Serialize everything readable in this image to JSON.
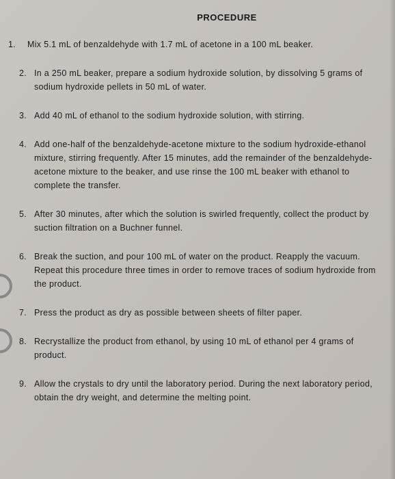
{
  "title": "PROCEDURE",
  "steps": [
    {
      "num": "1.",
      "text": "Mix 5.1 mL of benzaldehyde with 1.7 mL of acetone in a 100 mL beaker."
    },
    {
      "num": "2.",
      "text": "In a 250 mL beaker, prepare a sodium hydroxide solution, by dissolving 5 grams of sodium hydroxide pellets in 50 mL of water."
    },
    {
      "num": "3.",
      "text": "Add 40 mL of ethanol to the sodium hydroxide solution, with stirring."
    },
    {
      "num": "4.",
      "text": "Add one-half of the benzaldehyde-acetone mixture to the sodium hydroxide-ethanol mixture, stirring frequently. After 15 minutes, add the remainder of the benzaldehyde-acetone mixture to the beaker, and use rinse the 100 mL beaker with ethanol to complete the transfer."
    },
    {
      "num": "5.",
      "text": "After 30 minutes, after which the solution is swirled frequently, collect the product by suction filtration on a Buchner funnel."
    },
    {
      "num": "6.",
      "text": "Break the suction, and pour 100 mL of water on the product. Reapply the vacuum. Repeat this procedure three times in order to remove traces of sodium hydroxide from the product."
    },
    {
      "num": "7.",
      "text": "Press the product as dry as possible between sheets of filter paper."
    },
    {
      "num": "8.",
      "text": "Recrystallize the product from ethanol, by using 10 mL of ethanol per 4 grams of product."
    },
    {
      "num": "9.",
      "text": "Allow the crystals to dry until the laboratory period. During the next laboratory period, obtain the dry weight, and determine the melting point."
    }
  ],
  "style": {
    "background_start": "#c9c5c0",
    "background_end": "#bdb8b2",
    "text_color": "#1a1a1a",
    "title_fontsize": 13,
    "body_fontsize": 12.5
  }
}
